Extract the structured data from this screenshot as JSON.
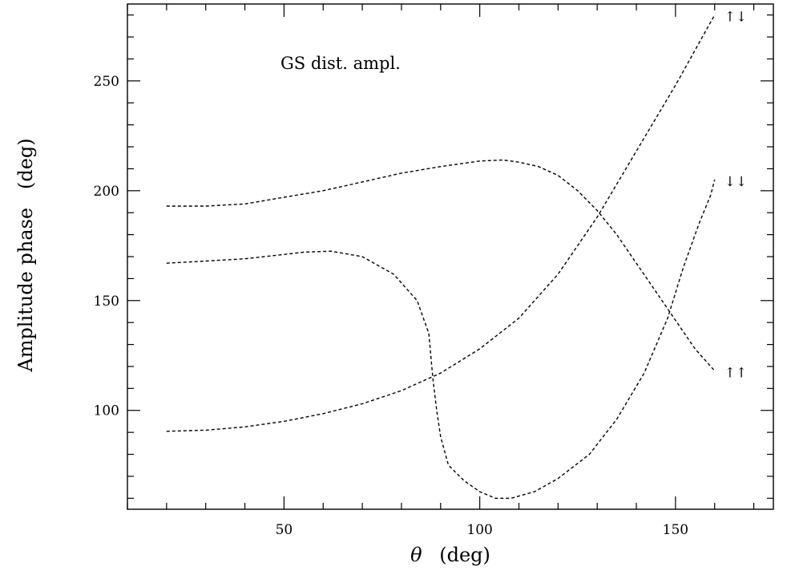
{
  "chart_data": {
    "type": "line",
    "annotation": "GS dist. ampl.",
    "xlabel_symbol": "θ",
    "xlabel_unit": "(deg)",
    "ylabel": "Amplitude phase   (deg)",
    "xlim": [
      10,
      175
    ],
    "ylim": [
      55,
      285
    ],
    "xticks_major": [
      50,
      100,
      150
    ],
    "yticks_major": [
      100,
      150,
      200,
      250
    ],
    "grid": false,
    "legend": "none",
    "series": [
      {
        "name": "↑↓",
        "x": [
          20,
          30,
          40,
          50,
          60,
          70,
          80,
          90,
          100,
          110,
          120,
          130,
          140,
          150,
          155,
          160
        ],
        "y": [
          90.5,
          91,
          92.5,
          95,
          98.5,
          103,
          109,
          117,
          128,
          142,
          162,
          188,
          218,
          248,
          264,
          280
        ]
      },
      {
        "name": "↓↓",
        "x": [
          20,
          30,
          40,
          50,
          55,
          62,
          70,
          78,
          84,
          87,
          88,
          89,
          90,
          92,
          96,
          100,
          104,
          108,
          114,
          120,
          128,
          135,
          142,
          148,
          152,
          156,
          159,
          160
        ],
        "y": [
          167,
          168,
          169,
          171,
          172,
          172.5,
          170,
          162,
          150,
          135,
          115,
          100,
          88,
          75,
          68,
          63,
          60,
          60,
          63,
          69,
          80,
          96,
          117,
          142,
          165,
          185,
          198,
          205
        ]
      },
      {
        "name": "↑↑",
        "x": [
          20,
          30,
          40,
          50,
          60,
          70,
          80,
          90,
          100,
          106,
          110,
          115,
          120,
          125,
          130,
          135,
          140,
          145,
          150,
          155,
          160
        ],
        "y": [
          193,
          193,
          194,
          197,
          200,
          204,
          208,
          211,
          213.5,
          214,
          213,
          211,
          207,
          200,
          191,
          180,
          167,
          154,
          141,
          128,
          118
        ]
      }
    ]
  }
}
